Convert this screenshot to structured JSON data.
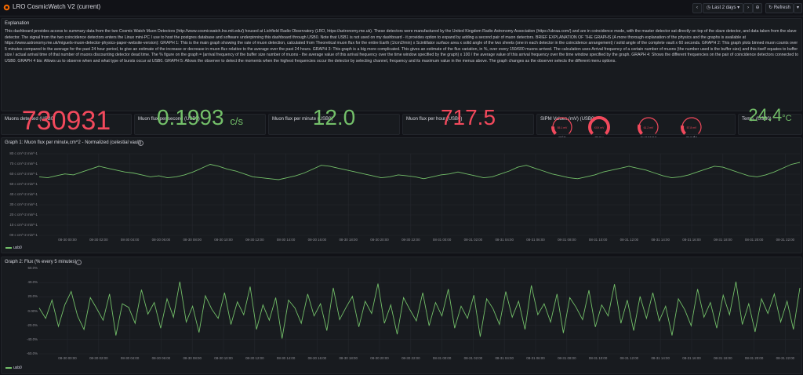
{
  "header": {
    "title": "LRO CosmicWatch V2 (current)",
    "time_range": "Last 2 days",
    "refresh_label": "Refresh"
  },
  "explanation": {
    "title": "Explanation",
    "text": "This dashboard provides access to summary data from the two Cosmic Watch Muon Detectors (http://www.cosmicwatch.lns.mit.edu/) housed at Lichfield Radio Observatory (LRO, https://astronomy.me.uk). These detectors were manufactured by the United Kingdom Radio Astronomy Association (https://ukraa.com/) and are in coincidence mode, with the master detector sat directly on top of the slave detector, and data taken from the slave detector. The signal from the two coincidence detectors enters the Linux mini-PC I use to host the postgres database and software underpinning this dashboard through USB0. Note that USB1 is not used on my dashboard - it provides option to expand by adding a second pair of muon detectors. BRIEF EXPLANATION OF THE GRAPHS (A more thorough explanation of the physics and the graphs is available at https://www.astronomy.me.uk/miguels-muon-detector-physics-paper-website-version): GRAPH 1: This is the main graph showing the rate of muon detection, calculated from Theoretical muon flux for the entire Earth (1/cm2/min) x Scintillator surface area x solid angle of the two sheets (one in each detector in the coincidence arrangement) / solid angle of the complete vault x 60 seconds. GRAPH 2: This graph plots binned muon counts over 5 minutes compared to the average for the past 24 hour period, to give an estimate of the increase or decrease in muon flux relative to the average over the past 24 hours. GRAPH 3: This graph is a big more complicated. This gives an estimate of the flux variation, in %, over every 150/600 muons arrived. The calculation uses Arrival frequency of a certain number of muons (the number used is the buffer size) and this itself equates to buffer size / actual arrival time of that number of muons discounting detector dead time. The % figure on the graph = (arrival frequency of the buffer size number of muons - the average value of this arrival frequency over the time window specified by the graph) x 100 / the average value of this arrival frequency over the time window specified by the graph. GRAPH 4: Shows the different frequencies on the pair of coincidence detectors connected to USB0. GRAPH 4 bis: Allows us to observe when and what type of bursts occur at USB0. GRAPH 5: Allows the observer to detect the moments when the highest frequencies occur the detector by selecting channel, frequency and its maximum value in the menus above. The graph changes as the observer selects the different menu options."
  },
  "stats": {
    "muons_detected": {
      "title": "Muons detected (USB0)",
      "value": "730931"
    },
    "flux_second": {
      "title": "Muon flux per second (USB0)",
      "value": "0.1993",
      "unit": "c/s"
    },
    "flux_minute": {
      "title": "Muon flux per minute (USB0)",
      "value": "12.0"
    },
    "flux_hour": {
      "title": "Muon flux per hour (USB0)",
      "value": "717.5"
    },
    "sipm": {
      "title": "SIPM Values (mV) (USB0)",
      "gauges": [
        {
          "label": "min",
          "value": "55.1 mV",
          "fraction": 0.18
        },
        {
          "label": "max",
          "value": "XXX mV",
          "fraction": 1.0
        },
        {
          "label": "average",
          "value": "61.2 mV",
          "fraction": 0.22
        },
        {
          "label": "mode",
          "value": "57.8 mV",
          "fraction": 0.2
        }
      ]
    },
    "temp": {
      "title": "Temp. (USB0)",
      "value": "24.4",
      "unit": "°C"
    }
  },
  "graph1": {
    "title": "Graph 1: Muon flux per minute,cm^2 - Normalized (celestial vault)",
    "legend": "usb0",
    "y_ticks": [
      "80 c cm^-2 min^-1",
      "70 c cm^-2 min^-1",
      "60 c cm^-2 min^-1",
      "50 c cm^-2 min^-1",
      "40 c cm^-2 min^-1",
      "30 c cm^-2 min^-1",
      "20 c cm^-2 min^-1",
      "10 c cm^-2 min^-1",
      "00 c cm^-2 min^-1"
    ],
    "x_ticks": [
      "08-30 00:00",
      "08-30 02:00",
      "08-30 04:00",
      "08-30 06:00",
      "08-30 08:00",
      "08-30 10:00",
      "08-30 12:00",
      "08-30 14:00",
      "08-30 16:00",
      "08-30 18:00",
      "08-30 20:00",
      "08-30 22:00",
      "08-31 00:00",
      "08-31 02:00",
      "08-31 04:00",
      "08-31 06:00",
      "08-31 08:00",
      "08-31 10:00",
      "08-31 12:00",
      "08-31 14:00",
      "08-31 16:00",
      "08-31 18:00",
      "08-31 20:00",
      "08-31 22:00"
    ]
  },
  "graph2": {
    "title": "Graph 2: Flux (% every 5 minutes)",
    "legend": "usb0",
    "y_ticks": [
      "60.0%",
      "40.0%",
      "20.0%",
      "0.00%",
      "-20.0%",
      "-40.0%",
      "-60.0%"
    ],
    "x_ticks": [
      "08-30 00:00",
      "08-30 02:00",
      "08-30 04:00",
      "08-30 06:00",
      "08-30 08:00",
      "08-30 10:00",
      "08-30 12:00",
      "08-30 14:00",
      "08-30 16:00",
      "08-30 18:00",
      "08-30 20:00",
      "08-30 22:00",
      "08-31 00:00",
      "08-31 02:00",
      "08-31 04:00",
      "08-31 06:00",
      "08-31 08:00",
      "08-31 10:00",
      "08-31 12:00",
      "08-31 14:00",
      "08-31 16:00",
      "08-31 18:00",
      "08-31 20:00",
      "08-31 22:00"
    ]
  },
  "colors": {
    "accent_red": "#f2495c",
    "accent_green": "#73bf69",
    "series": "#73bf69"
  },
  "chart_data": [
    {
      "type": "line",
      "title": "Graph 1: Muon flux per minute,cm^2 - Normalized (celestial vault)",
      "ylabel": "c cm^-2 min^-1",
      "ylim": [
        0,
        85
      ],
      "x_range": [
        "08-29 23:00",
        "08-31 22:30"
      ],
      "series": [
        {
          "name": "usb0",
          "values": [
            61,
            60,
            62,
            64,
            63,
            66,
            69,
            72,
            70,
            68,
            66,
            65,
            63,
            61,
            62,
            60,
            61,
            63,
            66,
            70,
            74,
            72,
            69,
            67,
            64,
            61,
            60,
            59,
            58,
            60,
            62,
            65,
            69,
            73,
            72,
            70,
            68,
            66,
            64,
            62,
            60,
            61,
            63,
            62,
            61,
            59,
            61,
            63,
            64,
            66,
            64,
            62,
            60,
            61,
            64,
            67,
            71,
            73,
            70,
            67,
            64,
            62,
            60,
            59,
            61,
            63,
            66,
            68,
            70,
            72,
            70,
            68,
            65,
            62,
            60,
            61,
            63,
            66,
            69,
            72,
            71,
            68,
            65,
            62,
            61,
            63,
            66,
            70,
            74,
            76
          ]
        }
      ],
      "grid": true,
      "legend_position": "bottom-left"
    },
    {
      "type": "line",
      "title": "Graph 2: Flux (% every 5 minutes)",
      "ylabel": "%",
      "ylim": [
        -70,
        70
      ],
      "x_range": [
        "08-29 23:00",
        "08-31 22:30"
      ],
      "series": [
        {
          "name": "usb0",
          "values": [
            5,
            -12,
            18,
            -25,
            10,
            32,
            -8,
            -30,
            22,
            4,
            -15,
            28,
            -40,
            12,
            6,
            -20,
            35,
            -5,
            14,
            -28,
            20,
            -10,
            48,
            -18,
            8,
            -35,
            25,
            3,
            -12,
            30,
            -22,
            15,
            -6,
            40,
            -30,
            10,
            -15,
            22,
            -45,
            18,
            5,
            -20,
            28,
            -8,
            12,
            -32,
            38,
            -14,
            6,
            24,
            -26,
            16,
            -4,
            45,
            -20,
            10,
            -38,
            22,
            2,
            -16,
            30,
            -24,
            14,
            -8,
            36,
            -28,
            8,
            -12,
            26,
            -42,
            20,
            4,
            -22,
            32,
            -10,
            16,
            -30,
            42,
            -6,
            12,
            -18,
            28,
            -36,
            22,
            6,
            -14,
            34,
            -26,
            10,
            -8,
            44,
            -20,
            18,
            -32,
            24,
            -12,
            30,
            -16,
            8,
            -40,
            20,
            2,
            -24,
            36,
            -10,
            14,
            -28,
            26,
            -6,
            48,
            -22,
            12,
            -34,
            20,
            -4,
            28,
            -18,
            16,
            -30,
            38
          ]
        }
      ],
      "grid": true,
      "legend_position": "bottom-left"
    }
  ]
}
